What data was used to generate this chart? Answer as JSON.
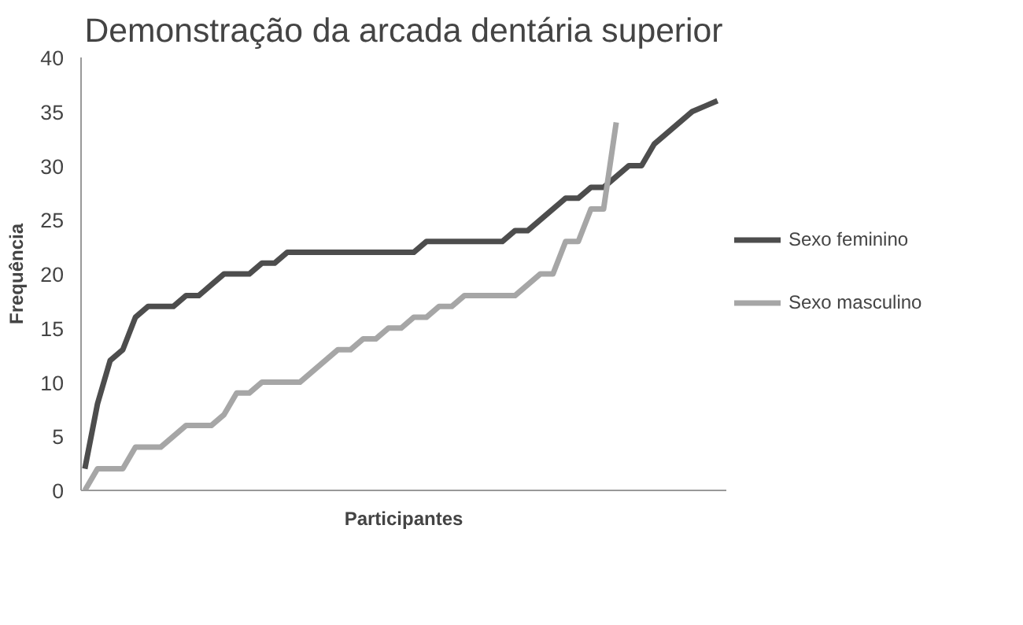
{
  "chart_data": {
    "type": "line",
    "title": "Demonstração da arcada dentária superior",
    "xlabel": "Participantes",
    "ylabel": "Frequência",
    "categories": [
      null,
      null,
      null,
      null,
      null,
      null,
      null,
      null,
      null,
      null,
      null,
      null,
      null,
      null,
      null,
      null,
      null,
      null,
      null,
      null,
      null,
      null,
      null,
      null,
      null,
      null,
      null,
      null,
      null,
      null,
      null,
      null,
      null,
      null,
      null,
      null,
      null,
      null,
      null,
      null,
      null,
      null,
      null,
      null,
      null,
      null,
      null,
      null,
      null,
      null,
      null
    ],
    "series": [
      {
        "name": "Sexo feminino",
        "color": "#4d4d4d",
        "values": [
          2,
          8,
          12,
          13,
          16,
          17,
          17,
          17,
          18,
          18,
          19,
          20,
          20,
          20,
          21,
          21,
          22,
          22,
          22,
          22,
          22,
          22,
          22,
          22,
          22,
          22,
          22,
          23,
          23,
          23,
          23,
          23,
          23,
          23,
          24,
          24,
          25,
          26,
          27,
          27,
          28,
          28,
          29,
          30,
          30,
          32,
          33,
          34,
          35,
          35.5,
          36
        ]
      },
      {
        "name": "Sexo masculino",
        "color": "#a6a6a6",
        "values": [
          0,
          2,
          2,
          2,
          4,
          4,
          4,
          5,
          6,
          6,
          6,
          7,
          9,
          9,
          10,
          10,
          10,
          10,
          11,
          12,
          13,
          13,
          14,
          14,
          15,
          15,
          16,
          16,
          17,
          17,
          18,
          18,
          18,
          18,
          18,
          19,
          20,
          20,
          23,
          23,
          26,
          26,
          34,
          null,
          null,
          null,
          null,
          null,
          null,
          null,
          null
        ]
      }
    ],
    "ylim": [
      0,
      40
    ],
    "yticks": [
      0,
      5,
      10,
      15,
      20,
      25,
      30,
      35,
      40
    ],
    "grid": false,
    "legend": "right",
    "marker": "none",
    "line_style": "solid"
  }
}
